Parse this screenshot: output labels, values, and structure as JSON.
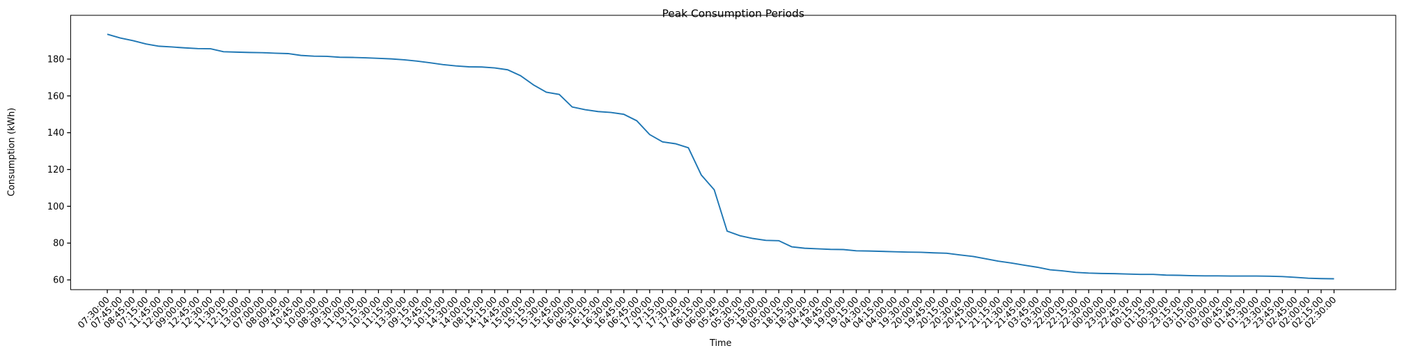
{
  "chart_data": {
    "type": "line",
    "title": "Peak Consumption Periods",
    "xlabel": "Time",
    "ylabel": "Consumption (kWh)",
    "categories": [
      "07:30:00",
      "07:45:00",
      "08:45:00",
      "07:15:00",
      "11:45:00",
      "12:00:00",
      "09:00:00",
      "12:45:00",
      "12:30:00",
      "11:30:00",
      "12:15:00",
      "13:00:00",
      "07:00:00",
      "08:00:00",
      "09:45:00",
      "10:45:00",
      "10:00:00",
      "08:30:00",
      "09:30:00",
      "11:00:00",
      "13:15:00",
      "10:30:00",
      "11:15:00",
      "13:30:00",
      "09:15:00",
      "13:45:00",
      "10:15:00",
      "14:30:00",
      "14:00:00",
      "08:15:00",
      "14:15:00",
      "14:45:00",
      "15:00:00",
      "15:15:00",
      "15:30:00",
      "15:45:00",
      "16:00:00",
      "06:30:00",
      "16:15:00",
      "16:30:00",
      "16:45:00",
      "06:45:00",
      "17:00:00",
      "17:15:00",
      "17:30:00",
      "17:45:00",
      "06:15:00",
      "06:00:00",
      "05:45:00",
      "05:30:00",
      "05:15:00",
      "18:00:00",
      "05:00:00",
      "18:15:00",
      "18:30:00",
      "04:45:00",
      "18:45:00",
      "19:00:00",
      "19:15:00",
      "04:30:00",
      "04:15:00",
      "04:00:00",
      "19:30:00",
      "20:00:00",
      "19:45:00",
      "20:15:00",
      "20:30:00",
      "20:45:00",
      "21:00:00",
      "21:15:00",
      "21:30:00",
      "21:45:00",
      "03:45:00",
      "03:30:00",
      "22:00:00",
      "22:15:00",
      "22:30:00",
      "00:00:00",
      "23:00:00",
      "22:45:00",
      "00:15:00",
      "01:15:00",
      "00:30:00",
      "23:15:00",
      "03:15:00",
      "01:00:00",
      "03:00:00",
      "00:45:00",
      "01:45:00",
      "01:30:00",
      "23:30:00",
      "23:45:00",
      "02:45:00",
      "02:00:00",
      "02:15:00",
      "02:30:00"
    ],
    "values": [
      193.5,
      191.5,
      190,
      188.2,
      187,
      186.6,
      186.1,
      185.7,
      185.6,
      184,
      183.8,
      183.6,
      183.5,
      183.2,
      183,
      182,
      181.6,
      181.5,
      181,
      180.9,
      180.7,
      180.4,
      180.1,
      179.6,
      178.9,
      178,
      177,
      176.3,
      175.8,
      175.7,
      175.2,
      174.2,
      171,
      166,
      162,
      160.8,
      154,
      152.5,
      151.5,
      151,
      150,
      146.5,
      139,
      135,
      134,
      131.8,
      117,
      109,
      86.5,
      84,
      82.5,
      81.5,
      81.3,
      78,
      77.2,
      76.9,
      76.6,
      76.5,
      75.8,
      75.7,
      75.5,
      75.3,
      75.1,
      75,
      74.7,
      74.5,
      73.6,
      72.8,
      71.5,
      70.2,
      69.2,
      68,
      66.9,
      65.5,
      64.9,
      64.1,
      63.7,
      63.5,
      63.4,
      63.2,
      63,
      63,
      62.6,
      62.5,
      62.3,
      62.2,
      62.2,
      62.1,
      62.1,
      62.1,
      62,
      61.8,
      61.4,
      60.9,
      60.7,
      60.6
    ],
    "color": "#1f77b4",
    "ylim": [
      54.7,
      203.8
    ],
    "yticks": [
      60,
      80,
      100,
      120,
      140,
      160,
      180
    ]
  }
}
